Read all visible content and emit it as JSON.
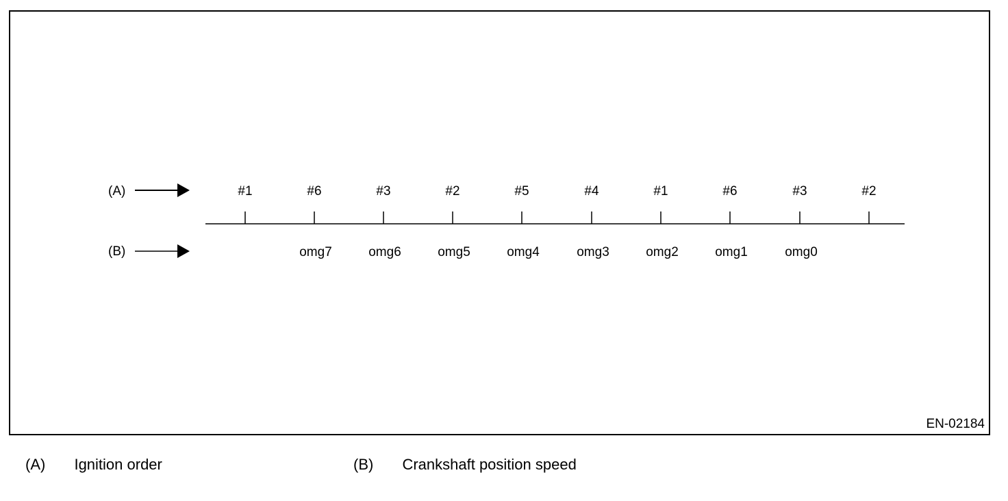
{
  "diagram": {
    "row_a_marker": "(A)",
    "row_b_marker": "(B)",
    "ignition_labels": [
      "#1",
      "#6",
      "#3",
      "#2",
      "#5",
      "#4",
      "#1",
      "#6",
      "#3",
      "#2"
    ],
    "speed_labels": [
      "omg7",
      "omg6",
      "omg5",
      "omg4",
      "omg3",
      "omg2",
      "omg1",
      "omg0"
    ],
    "figure_id": "EN-02184"
  },
  "legend": [
    {
      "key": "(A)",
      "text": "Ignition order"
    },
    {
      "key": "(B)",
      "text": "Crankshaft position speed"
    }
  ]
}
